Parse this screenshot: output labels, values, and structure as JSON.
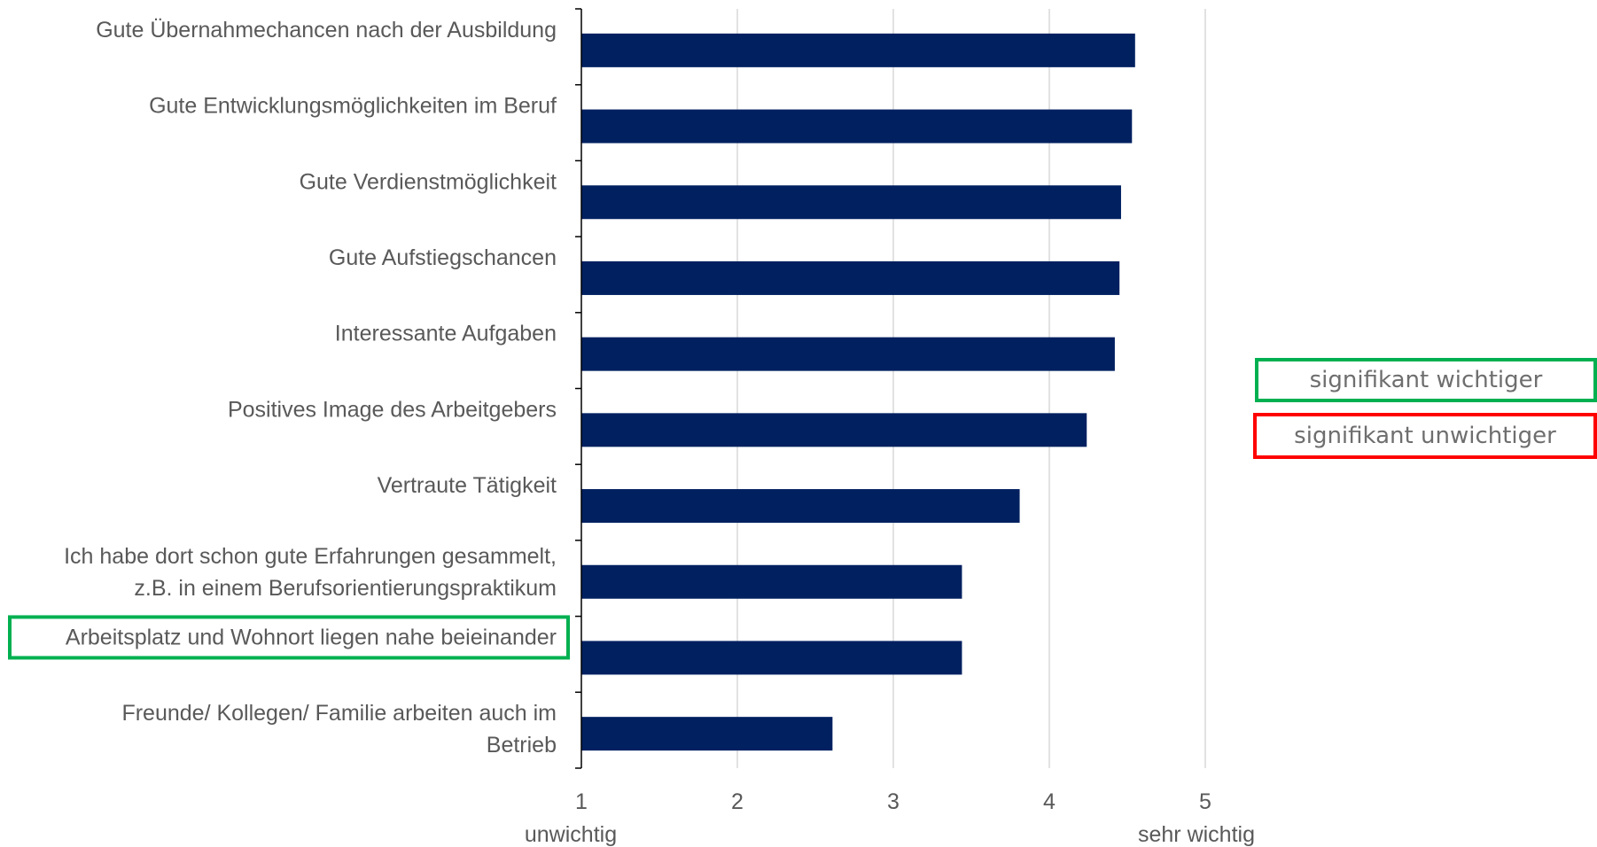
{
  "chart_data": {
    "type": "bar",
    "orientation": "horizontal",
    "categories": [
      [
        "Gute Übernahmechancen nach der Ausbildung"
      ],
      [
        "Gute Entwicklungsmöglichkeiten im Beruf"
      ],
      [
        "Gute Verdienstmöglichkeit"
      ],
      [
        "Gute Aufstiegschancen"
      ],
      [
        "Interessante Aufgaben"
      ],
      [
        "Positives Image des Arbeitgebers"
      ],
      [
        "Vertraute Tätigkeit"
      ],
      [
        "Ich habe dort schon gute Erfahrungen gesammelt,",
        "z.B. in einem Berufsorientierungspraktikum"
      ],
      [
        "Arbeitsplatz und Wohnort liegen nahe beieinander"
      ],
      [
        "Freunde/ Kollegen/ Familie arbeiten auch im",
        "Betrieb"
      ]
    ],
    "values": [
      4.55,
      4.53,
      4.46,
      4.45,
      4.42,
      4.24,
      3.81,
      3.44,
      3.44,
      2.61
    ],
    "highlight": [
      null,
      null,
      null,
      null,
      null,
      null,
      null,
      null,
      "significant-higher",
      null
    ],
    "xlim": [
      1,
      5
    ],
    "xticks": [
      "1",
      "2",
      "3",
      "4",
      "5"
    ],
    "x_end_labels": {
      "min": "unwichtig",
      "max": "sehr wichtig"
    },
    "grid": "vertical",
    "bar_color": "#002060",
    "grid_color": "#d9d9d9"
  },
  "legend": {
    "items": [
      {
        "label": "signifikant wichtiger",
        "color": "#00b050"
      },
      {
        "label": "signifikant unwichtiger",
        "color": "#ff0000"
      }
    ]
  }
}
